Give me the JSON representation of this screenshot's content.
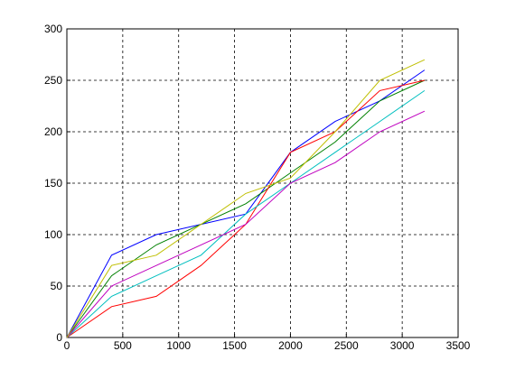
{
  "chart_data": {
    "type": "line",
    "x": [
      0,
      400,
      800,
      1200,
      1600,
      2000,
      2400,
      2800,
      3200
    ],
    "series": [
      {
        "color": "#0000ff",
        "values": [
          0,
          80,
          100,
          110,
          120,
          180,
          210,
          230,
          260
        ]
      },
      {
        "color": "#008000",
        "values": [
          0,
          60,
          90,
          110,
          130,
          160,
          190,
          230,
          250
        ]
      },
      {
        "color": "#ff0000",
        "values": [
          0,
          30,
          40,
          70,
          110,
          180,
          200,
          240,
          250
        ]
      },
      {
        "color": "#00bfbf",
        "values": [
          0,
          40,
          60,
          80,
          120,
          150,
          180,
          210,
          240
        ]
      },
      {
        "color": "#bf00bf",
        "values": [
          0,
          50,
          70,
          90,
          110,
          150,
          170,
          200,
          220
        ]
      },
      {
        "color": "#bfbf00",
        "values": [
          0,
          70,
          80,
          110,
          140,
          155,
          200,
          250,
          270
        ]
      }
    ],
    "xlim": [
      0,
      3500
    ],
    "ylim": [
      0,
      300
    ],
    "xticks": [
      0,
      500,
      1000,
      1500,
      2000,
      2500,
      3000,
      3500
    ],
    "yticks": [
      0,
      50,
      100,
      150,
      200,
      250,
      300
    ],
    "grid": true
  }
}
